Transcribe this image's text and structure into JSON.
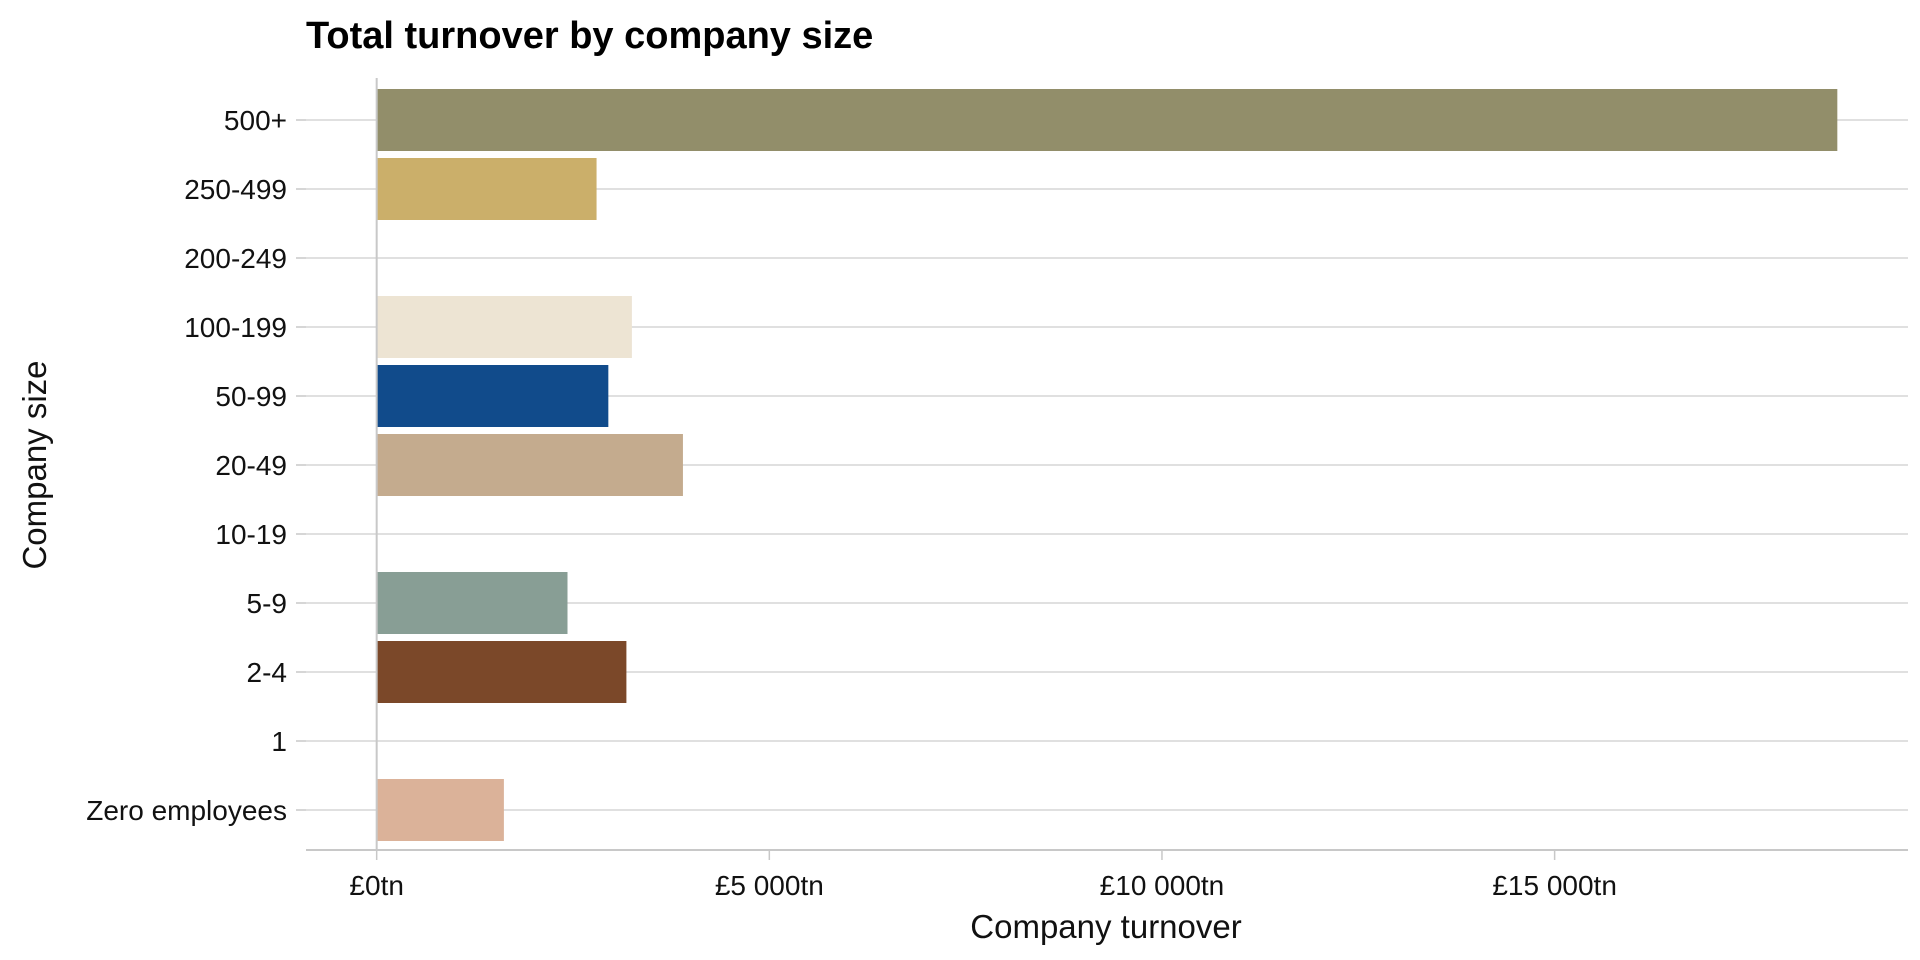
{
  "chart_data": {
    "type": "bar",
    "orientation": "horizontal",
    "title": "Total turnover by company size",
    "xlabel": "Company turnover",
    "ylabel": "Company size",
    "categories": [
      "500+",
      "250-499",
      "200-249",
      "100-199",
      "50-99",
      "20-49",
      "10-19",
      "5-9",
      "2-4",
      "1",
      "Zero employees"
    ],
    "values": [
      18600,
      2800,
      0,
      3250,
      2950,
      3900,
      0,
      2430,
      3180,
      0,
      1620
    ],
    "colors": [
      "#928e6a",
      "#cbaf6a",
      "#ffffff",
      "#ede4d3",
      "#114b8b",
      "#c4ab8e",
      "#ffffff",
      "#889e95",
      "#7b4829",
      "#ffffff",
      "#dbb299"
    ],
    "xlim": [
      -900,
      19500
    ],
    "xticks": [
      0,
      5000,
      10000,
      15000
    ],
    "xtick_labels": [
      "£0tn",
      "£5 000tn",
      "£10 000tn",
      "£15 000tn"
    ],
    "grid": "horizontal",
    "legend": "none"
  }
}
